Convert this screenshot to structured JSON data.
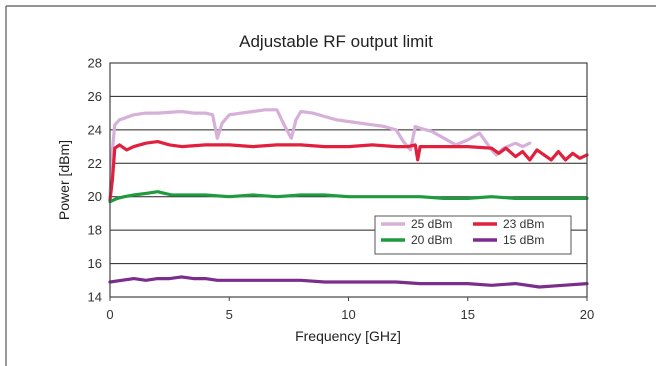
{
  "chart_data": {
    "type": "line",
    "title": "Adjustable RF output limit",
    "xlabel": "Frequency [GHz]",
    "ylabel": "Power [dBm]",
    "xlim": [
      0,
      20
    ],
    "ylim": [
      14,
      28
    ],
    "xticks": [
      0,
      5,
      10,
      15,
      20
    ],
    "yticks": [
      14,
      16,
      18,
      20,
      22,
      24,
      26,
      28
    ],
    "grid": "horizontal",
    "legend": "lower-right",
    "series": [
      {
        "name": "25 dBm",
        "color": "#d6b0d8",
        "x": [
          0,
          0.1,
          0.2,
          0.4,
          0.6,
          1.0,
          1.5,
          2.0,
          3.0,
          3.5,
          4.0,
          4.3,
          4.5,
          4.7,
          5.0,
          5.5,
          6.0,
          6.5,
          7.0,
          7.3,
          7.6,
          7.8,
          8.0,
          8.5,
          9.0,
          9.5,
          10.0,
          10.5,
          11.0,
          11.5,
          12.0,
          12.3,
          12.6,
          12.8,
          13.0,
          13.5,
          14.0,
          14.5,
          15.0,
          15.5,
          16.0,
          16.2,
          16.5,
          17.0,
          17.3,
          17.6
        ],
        "values": [
          20.0,
          22.8,
          24.3,
          24.6,
          24.7,
          24.9,
          25.0,
          25.0,
          25.1,
          25.0,
          25.0,
          24.9,
          23.5,
          24.4,
          24.9,
          25.0,
          25.1,
          25.2,
          25.2,
          24.3,
          23.5,
          24.6,
          25.1,
          25.0,
          24.8,
          24.6,
          24.5,
          24.4,
          24.3,
          24.2,
          24.0,
          23.3,
          22.8,
          24.2,
          24.1,
          23.9,
          23.5,
          23.1,
          23.4,
          23.8,
          22.8,
          22.5,
          22.9,
          23.2,
          23.0,
          23.2
        ]
      },
      {
        "name": "23 dBm",
        "color": "#e0203c",
        "x": [
          0,
          0.1,
          0.2,
          0.4,
          0.7,
          1.0,
          1.5,
          2.0,
          2.5,
          3.0,
          4.0,
          5.0,
          6.0,
          7.0,
          8.0,
          9.0,
          10.0,
          11.0,
          12.0,
          12.5,
          12.8,
          12.9,
          13.0,
          14.0,
          15.0,
          16.0,
          16.3,
          16.6,
          17.0,
          17.3,
          17.6,
          17.9,
          18.2,
          18.5,
          18.8,
          19.1,
          19.4,
          19.7,
          20.0
        ],
        "values": [
          19.8,
          21.0,
          22.9,
          23.1,
          22.8,
          23.0,
          23.2,
          23.3,
          23.1,
          23.0,
          23.1,
          23.1,
          23.0,
          23.1,
          23.1,
          23.0,
          23.0,
          23.1,
          23.0,
          23.0,
          23.1,
          22.2,
          23.0,
          23.0,
          23.0,
          22.9,
          22.6,
          22.9,
          22.4,
          22.7,
          22.2,
          22.8,
          22.5,
          22.2,
          22.7,
          22.2,
          22.6,
          22.3,
          22.5
        ]
      },
      {
        "name": "20 dBm",
        "color": "#1f9a3e",
        "x": [
          0,
          0.3,
          0.6,
          1.0,
          1.5,
          2.0,
          2.3,
          2.6,
          3.0,
          4.0,
          5.0,
          6.0,
          7.0,
          8.0,
          9.0,
          10.0,
          11.0,
          12.0,
          13.0,
          14.0,
          15.0,
          16.0,
          17.0,
          18.0,
          19.0,
          20.0
        ],
        "values": [
          19.7,
          19.9,
          20.0,
          20.1,
          20.2,
          20.3,
          20.2,
          20.1,
          20.1,
          20.1,
          20.0,
          20.1,
          20.0,
          20.1,
          20.1,
          20.0,
          20.0,
          20.0,
          20.0,
          19.9,
          19.9,
          20.0,
          19.9,
          19.9,
          19.9,
          19.9
        ]
      },
      {
        "name": "15 dBm",
        "color": "#7b2d8e",
        "x": [
          0,
          0.5,
          1.0,
          1.5,
          2.0,
          2.5,
          3.0,
          3.5,
          4.0,
          4.5,
          5.0,
          6.0,
          7.0,
          8.0,
          9.0,
          10.0,
          11.0,
          12.0,
          13.0,
          14.0,
          15.0,
          16.0,
          17.0,
          18.0,
          19.0,
          20.0
        ],
        "values": [
          14.9,
          15.0,
          15.1,
          15.0,
          15.1,
          15.1,
          15.2,
          15.1,
          15.1,
          15.0,
          15.0,
          15.0,
          15.0,
          15.0,
          14.9,
          14.9,
          14.9,
          14.9,
          14.8,
          14.8,
          14.8,
          14.7,
          14.8,
          14.6,
          14.7,
          14.8
        ]
      }
    ]
  }
}
